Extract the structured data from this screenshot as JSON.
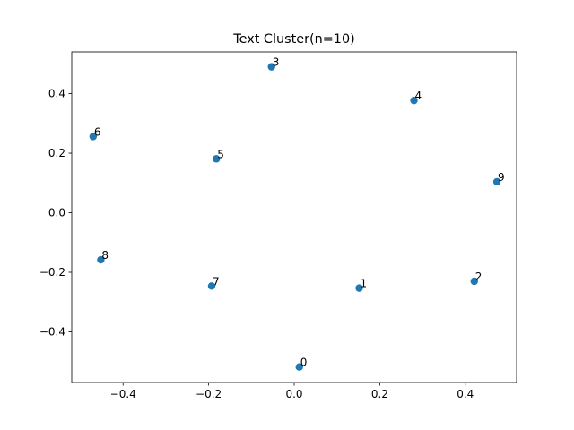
{
  "chart_data": {
    "type": "scatter",
    "title": "Text Cluster(n=10)",
    "xlabel": "",
    "ylabel": "",
    "xlim": [
      -0.52,
      0.52
    ],
    "ylim": [
      -0.57,
      0.54
    ],
    "xticks": [
      -0.4,
      -0.2,
      0.0,
      0.2,
      0.4
    ],
    "xtick_labels": [
      "−0.4",
      "−0.2",
      "0.0",
      "0.2",
      "0.4"
    ],
    "yticks": [
      -0.4,
      -0.2,
      0.0,
      0.2,
      0.4
    ],
    "ytick_labels": [
      "−0.4",
      "−0.2",
      "0.0",
      "0.2",
      "0.4"
    ],
    "grid": false,
    "point_color": "#1f77b4",
    "points": [
      {
        "label": "0",
        "x": 0.012,
        "y": -0.518
      },
      {
        "label": "1",
        "x": 0.152,
        "y": -0.253
      },
      {
        "label": "2",
        "x": 0.421,
        "y": -0.23
      },
      {
        "label": "3",
        "x": -0.053,
        "y": 0.49
      },
      {
        "label": "4",
        "x": 0.28,
        "y": 0.377
      },
      {
        "label": "5",
        "x": -0.182,
        "y": 0.181
      },
      {
        "label": "6",
        "x": -0.47,
        "y": 0.256
      },
      {
        "label": "7",
        "x": -0.193,
        "y": -0.246
      },
      {
        "label": "8",
        "x": -0.452,
        "y": -0.158
      },
      {
        "label": "9",
        "x": 0.474,
        "y": 0.104
      }
    ]
  }
}
